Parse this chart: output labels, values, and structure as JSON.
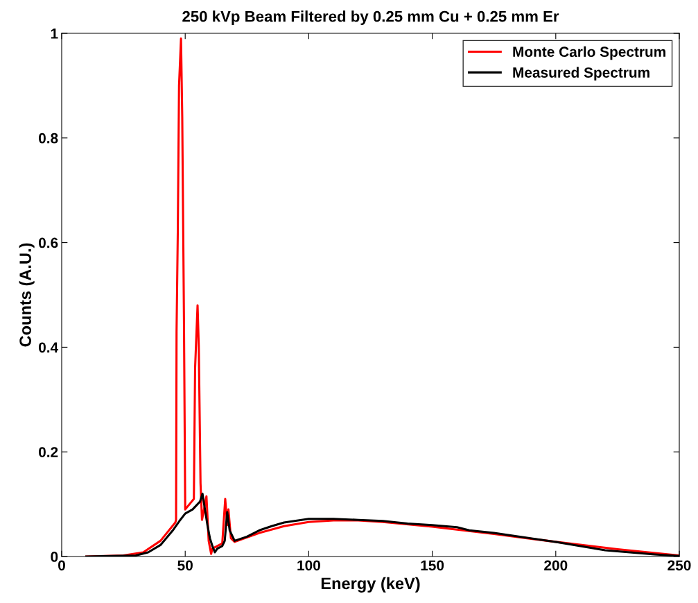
{
  "chart_data": {
    "type": "line",
    "title": "250 kVp Beam Filtered by 0.25 mm Cu + 0.25 mm Er",
    "xlabel": "Energy (keV)",
    "ylabel": "Counts (A.U.)",
    "xlim": [
      0,
      250
    ],
    "ylim": [
      0,
      1
    ],
    "xticks": [
      0,
      50,
      100,
      150,
      200,
      250
    ],
    "yticks": [
      0,
      0.2,
      0.4,
      0.6,
      0.8,
      1
    ],
    "legend": "top right",
    "grid": false,
    "marker": "none",
    "line_style": "solid",
    "series": [
      {
        "name": "Monte Carlo Spectrum",
        "color": "#ff0000",
        "x": [
          10,
          25,
          33,
          40,
          46,
          46.3,
          46.5,
          47,
          47.5,
          48.3,
          48.8,
          49.5,
          50,
          53.5,
          54,
          55,
          55.5,
          56.2,
          56.8,
          58.6,
          59.5,
          60.5,
          61,
          65,
          66.2,
          67,
          67.5,
          68.5,
          70,
          80,
          90,
          100,
          110,
          120,
          130,
          150,
          175,
          200,
          225,
          250
        ],
        "values": [
          0,
          0.002,
          0.008,
          0.03,
          0.065,
          0.07,
          0.43,
          0.62,
          0.9,
          0.99,
          0.84,
          0.45,
          0.09,
          0.11,
          0.36,
          0.48,
          0.4,
          0.14,
          0.07,
          0.115,
          0.03,
          0.005,
          0.015,
          0.025,
          0.11,
          0.06,
          0.09,
          0.035,
          0.028,
          0.045,
          0.058,
          0.066,
          0.069,
          0.069,
          0.066,
          0.057,
          0.043,
          0.028,
          0.014,
          0.002
        ]
      },
      {
        "name": "Measured Spectrum",
        "color": "#000000",
        "x": [
          10,
          30,
          35,
          40,
          45,
          48,
          50,
          53,
          56,
          57,
          58,
          59,
          60,
          61,
          62,
          63,
          65,
          66,
          67,
          68,
          69,
          70,
          75,
          80,
          85,
          90,
          100,
          110,
          120,
          130,
          140,
          150,
          160,
          165,
          175,
          185,
          200,
          210,
          220,
          230,
          240,
          250
        ],
        "values": [
          0,
          0.002,
          0.008,
          0.022,
          0.05,
          0.07,
          0.082,
          0.09,
          0.105,
          0.12,
          0.09,
          0.06,
          0.035,
          0.02,
          0.008,
          0.015,
          0.02,
          0.03,
          0.085,
          0.05,
          0.04,
          0.03,
          0.038,
          0.05,
          0.058,
          0.065,
          0.072,
          0.072,
          0.07,
          0.068,
          0.063,
          0.06,
          0.056,
          0.05,
          0.045,
          0.038,
          0.028,
          0.02,
          0.012,
          0.008,
          0.004,
          0.001
        ]
      }
    ]
  }
}
